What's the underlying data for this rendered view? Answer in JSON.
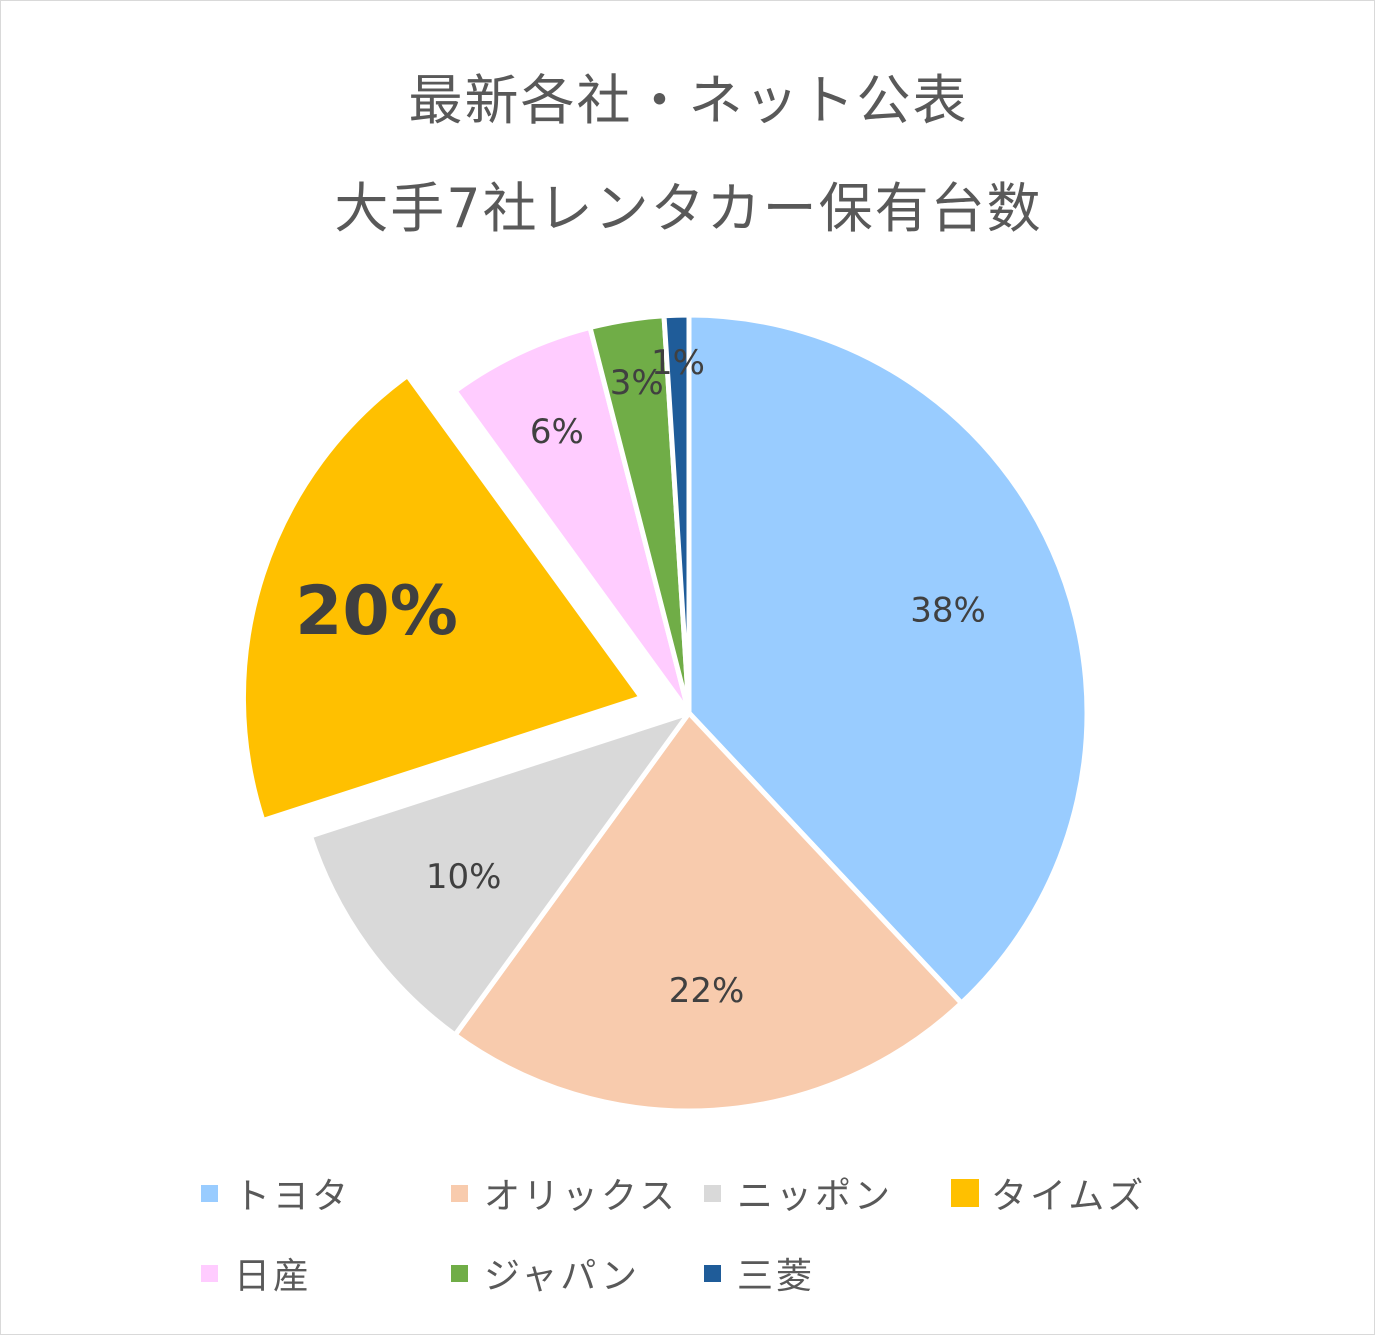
{
  "chart_data": {
    "type": "pie",
    "title_lines": [
      "最新各社・ネット公表",
      "大手7社レンタカー保有台数"
    ],
    "slices": [
      {
        "name": "トヨタ",
        "value": 38,
        "label": "38%",
        "color": "#99CCFF",
        "exploded": false,
        "bold": false
      },
      {
        "name": "オリックス",
        "value": 22,
        "label": "22%",
        "color": "#F8CBAD",
        "exploded": false,
        "bold": false
      },
      {
        "name": "ニッポン",
        "value": 10,
        "label": "10%",
        "color": "#D9D9D9",
        "exploded": false,
        "bold": false
      },
      {
        "name": "タイムズ",
        "value": 20,
        "label": "20%",
        "color": "#FFC000",
        "exploded": true,
        "bold": true
      },
      {
        "name": "日産",
        "value": 6,
        "label": "6%",
        "color": "#FFCCFF",
        "exploded": false,
        "bold": false
      },
      {
        "name": "ジャパン",
        "value": 3,
        "label": "3%",
        "color": "#70AD47",
        "exploded": false,
        "bold": false
      },
      {
        "name": "三菱",
        "value": 1,
        "label": "1%",
        "color": "#1F5C99",
        "exploded": false,
        "bold": false
      }
    ],
    "legend_position": "bottom",
    "label_color": "#404040"
  }
}
